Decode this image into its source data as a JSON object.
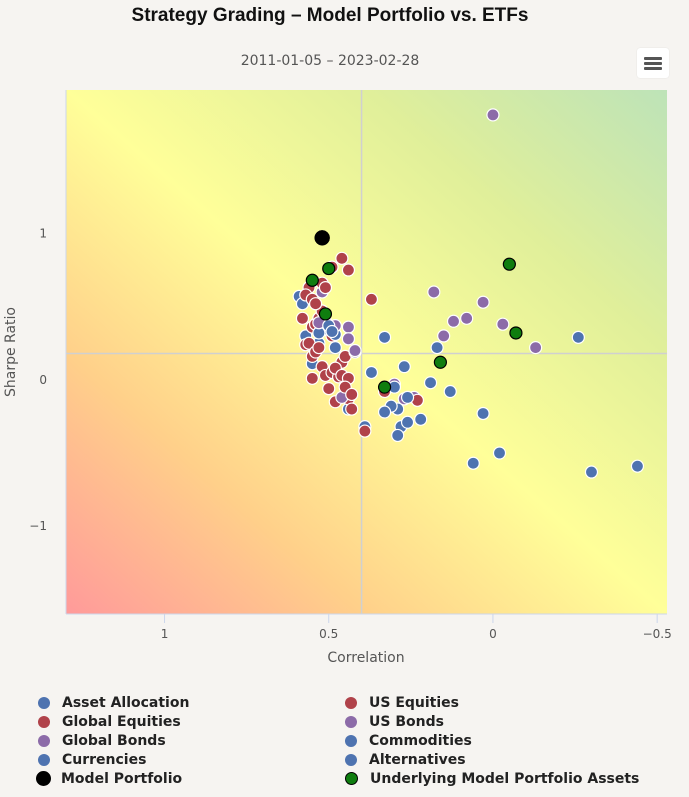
{
  "chart_data": {
    "type": "scatter",
    "title": "Strategy Grading – Model Portfolio vs. ETFs",
    "subtitle": "2011-01-05 – 2023-02-28",
    "xlabel": "Correlation",
    "ylabel": "Sharpe Ratio",
    "xlim": [
      1.3,
      -0.53
    ],
    "ylim": [
      -1.6,
      1.98
    ],
    "x_reversed": true,
    "x_ticks": [
      {
        "value": 1,
        "label": "1"
      },
      {
        "value": 0.5,
        "label": "0.5"
      },
      {
        "value": 0,
        "label": "0"
      },
      {
        "value": -0.5,
        "label": "−0.5"
      }
    ],
    "y_ticks": [
      {
        "value": 1,
        "label": "1"
      },
      {
        "value": 0,
        "label": "0"
      },
      {
        "value": -1,
        "label": "−1"
      }
    ],
    "crosshair": {
      "x": 0.4,
      "y": 0.18
    },
    "background": "gradient from red (bottom-left) through yellow to green (top-right)",
    "grid": false,
    "legend_position": "bottom",
    "series": [
      {
        "name": "Asset Allocation",
        "color": "#4e73b0",
        "points": [
          [
            0.59,
            0.57
          ],
          [
            0.58,
            0.52
          ],
          [
            0.57,
            0.3
          ],
          [
            0.53,
            0.25
          ],
          [
            0.55,
            0.11
          ],
          [
            0.5,
            0.36
          ],
          [
            0.49,
            0.33
          ],
          [
            0.48,
            0.22
          ],
          [
            0.44,
            -0.2
          ],
          [
            0.39,
            -0.32
          ],
          [
            0.37,
            0.05
          ]
        ]
      },
      {
        "name": "Global Equities",
        "color": "#b0424a",
        "points": [
          [
            0.58,
            0.42
          ],
          [
            0.57,
            0.24
          ],
          [
            0.56,
            0.25
          ],
          [
            0.55,
            0.36
          ],
          [
            0.54,
            0.38
          ],
          [
            0.53,
            0.42
          ],
          [
            0.52,
            0.47
          ],
          [
            0.51,
            0.4
          ],
          [
            0.5,
            0.35
          ],
          [
            0.49,
            0.3
          ],
          [
            0.55,
            0.16
          ],
          [
            0.54,
            0.19
          ],
          [
            0.53,
            0.22
          ],
          [
            0.52,
            0.09
          ],
          [
            0.51,
            0.03
          ],
          [
            0.5,
            -0.06
          ],
          [
            0.49,
            0.05
          ],
          [
            0.47,
            0.02
          ],
          [
            0.46,
            0.12
          ],
          [
            0.45,
            0.16
          ],
          [
            0.44,
            -0.13
          ],
          [
            0.43,
            -0.2
          ],
          [
            0.48,
            -0.15
          ]
        ]
      },
      {
        "name": "Global Bonds",
        "color": "#8c6ba8",
        "points": [
          [
            0.52,
            0.6
          ],
          [
            0.49,
            0.33
          ],
          [
            0.44,
            0.36
          ],
          [
            0.44,
            0.28
          ],
          [
            0.42,
            0.19
          ],
          [
            0.46,
            -0.12
          ],
          [
            0.3,
            -0.03
          ],
          [
            0.27,
            -0.13
          ],
          [
            0.24,
            -0.12
          ],
          [
            0.18,
            0.6
          ],
          [
            0.15,
            0.3
          ],
          [
            0.12,
            0.4
          ],
          [
            0.08,
            0.42
          ],
          [
            0.03,
            0.53
          ],
          [
            0.0,
            1.81
          ],
          [
            -0.03,
            0.38
          ],
          [
            -0.13,
            0.22
          ]
        ]
      },
      {
        "name": "Currencies",
        "color": "#4e73b0",
        "points": [
          [
            0.51,
            0.37
          ],
          [
            0.5,
            0.35
          ],
          [
            0.52,
            0.34
          ],
          [
            0.48,
            0.31
          ],
          [
            0.53,
            0.32
          ]
        ]
      },
      {
        "name": "Model Portfolio",
        "color": "#000000",
        "points": [
          [
            0.52,
            0.97
          ]
        ]
      },
      {
        "name": "US Equities",
        "color": "#b0424a",
        "points": [
          [
            0.46,
            0.83
          ],
          [
            0.44,
            0.75
          ],
          [
            0.49,
            0.77
          ],
          [
            0.55,
            0.67
          ],
          [
            0.52,
            0.66
          ],
          [
            0.51,
            0.63
          ],
          [
            0.56,
            0.63
          ],
          [
            0.57,
            0.58
          ],
          [
            0.55,
            0.55
          ],
          [
            0.54,
            0.52
          ],
          [
            0.37,
            0.55
          ],
          [
            0.48,
            0.08
          ],
          [
            0.46,
            0.03
          ],
          [
            0.44,
            0.01
          ],
          [
            0.45,
            -0.05
          ],
          [
            0.43,
            -0.1
          ],
          [
            0.39,
            -0.35
          ],
          [
            0.33,
            -0.08
          ],
          [
            0.23,
            -0.14
          ],
          [
            0.55,
            0.01
          ]
        ]
      },
      {
        "name": "US Bonds",
        "color": "#8c6ba8",
        "points": [
          [
            0.53,
            0.39
          ],
          [
            0.48,
            0.37
          ],
          [
            0.44,
            0.28
          ],
          [
            0.42,
            0.2
          ]
        ]
      },
      {
        "name": "Commodities",
        "color": "#4e73b0",
        "points": [
          [
            0.33,
            0.29
          ],
          [
            0.3,
            -0.05
          ],
          [
            0.27,
            0.09
          ],
          [
            0.26,
            -0.12
          ],
          [
            0.29,
            -0.2
          ],
          [
            0.31,
            -0.18
          ],
          [
            0.33,
            -0.22
          ],
          [
            0.28,
            -0.32
          ],
          [
            0.29,
            -0.38
          ],
          [
            0.26,
            -0.29
          ],
          [
            0.22,
            -0.27
          ],
          [
            0.19,
            -0.02
          ],
          [
            0.17,
            0.22
          ],
          [
            0.13,
            -0.08
          ],
          [
            0.03,
            -0.23
          ],
          [
            0.06,
            -0.57
          ],
          [
            -0.02,
            -0.5
          ],
          [
            -0.26,
            0.29
          ],
          [
            -0.3,
            -0.63
          ],
          [
            -0.44,
            -0.59
          ]
        ]
      },
      {
        "name": "Alternatives",
        "color": "#4e73b0",
        "points": [
          [
            0.5,
            0.37
          ],
          [
            0.49,
            0.33
          ]
        ]
      },
      {
        "name": "Underlying Model Portfolio Assets",
        "color": "#0f7d0f",
        "points": [
          [
            0.55,
            0.68
          ],
          [
            0.5,
            0.76
          ],
          [
            0.51,
            0.45
          ],
          [
            -0.05,
            0.79
          ],
          [
            -0.07,
            0.32
          ],
          [
            0.16,
            0.12
          ],
          [
            0.33,
            -0.05
          ]
        ]
      }
    ]
  },
  "legend": {
    "items": [
      {
        "label": "Asset Allocation",
        "color": "#4e73b0"
      },
      {
        "label": "US Equities",
        "color": "#b0424a"
      },
      {
        "label": "Global Equities",
        "color": "#b0424a"
      },
      {
        "label": "US Bonds",
        "color": "#8c6ba8"
      },
      {
        "label": "Global Bonds",
        "color": "#8c6ba8"
      },
      {
        "label": "Commodities",
        "color": "#4e73b0"
      },
      {
        "label": "Currencies",
        "color": "#4e73b0"
      },
      {
        "label": "Alternatives",
        "color": "#4e73b0"
      },
      {
        "label": "Model Portfolio",
        "color": "#000000"
      },
      {
        "label": "Underlying Model Portfolio Assets",
        "color": "#0f7d0f"
      }
    ]
  },
  "menu": {
    "icon": "hamburger-icon"
  }
}
